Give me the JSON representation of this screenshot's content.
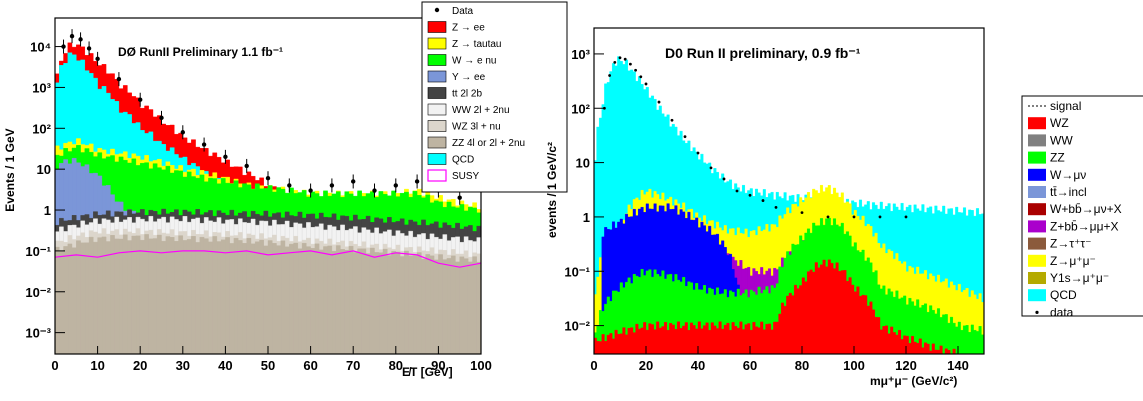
{
  "chart_data": [
    {
      "type": "area",
      "title": "DØ RunII Preliminary 1.1 fb⁻¹",
      "xlabel": "E̸T [GeV]",
      "ylabel": "Events / 1 GeV",
      "x_scale": "linear",
      "y_scale": "log",
      "xlim": [
        0,
        100
      ],
      "ylim": [
        0.0003,
        50000
      ],
      "x_ticks": [
        "0",
        "10",
        "20",
        "30",
        "40",
        "50",
        "60",
        "70",
        "80",
        "90",
        "100"
      ],
      "y_ticks": [
        "10⁻³",
        "10⁻²",
        "10⁻¹",
        "1",
        "10",
        "10²",
        "10³",
        "10⁴"
      ],
      "legend_position": "top-right",
      "series": [
        {
          "name": "QCD",
          "color": "#00ffff",
          "x": [
            0,
            2,
            4,
            6,
            8,
            10,
            15,
            20,
            25,
            30,
            35,
            40,
            45,
            50,
            55,
            60,
            65,
            70,
            75,
            80,
            85,
            90,
            95,
            100
          ],
          "values": [
            400,
            4000,
            7000,
            4500,
            2500,
            1200,
            300,
            100,
            40,
            18,
            8,
            4,
            2.5,
            1.6,
            1.2,
            1.0,
            0.9,
            0.8,
            0.7,
            0.6,
            0.5,
            0.4,
            0.35,
            0.3
          ]
        },
        {
          "name": "Z → ee",
          "color": "#ff0000",
          "x": [
            0,
            2,
            4,
            6,
            8,
            10,
            15,
            20,
            25,
            30,
            35,
            40,
            45,
            50,
            55,
            60,
            65,
            70,
            75,
            80,
            85,
            90,
            95,
            100
          ],
          "values": [
            500,
            6000,
            12000,
            10000,
            6500,
            4000,
            1200,
            400,
            150,
            60,
            30,
            15,
            8,
            4,
            2,
            1.2,
            0.9,
            0.7,
            0.6,
            0.5,
            0.5,
            0.4,
            0.35,
            0.3
          ]
        },
        {
          "name": "Z → tautau",
          "color": "#ffff00",
          "x": [
            0,
            5,
            10,
            15,
            20,
            25,
            30,
            35,
            40,
            45,
            50,
            55,
            60,
            65,
            70,
            75,
            80,
            85,
            90,
            95,
            100
          ],
          "values": [
            30,
            50,
            30,
            25,
            20,
            15,
            10,
            8,
            6,
            4,
            3.5,
            3,
            2.5,
            2.5,
            2.5,
            2.5,
            2.5,
            3,
            2,
            1.5,
            1.2
          ]
        },
        {
          "name": "W → e nu",
          "color": "#00ff00",
          "x": [
            0,
            5,
            10,
            15,
            20,
            25,
            30,
            35,
            40,
            45,
            50,
            55,
            60,
            65,
            70,
            75,
            80,
            85,
            90,
            95,
            100
          ],
          "values": [
            20,
            35,
            22,
            18,
            14,
            11,
            8,
            6,
            5,
            4,
            3.5,
            3,
            2.5,
            2.5,
            2.5,
            2.5,
            2.5,
            2.5,
            1.5,
            1.2,
            1.0
          ]
        },
        {
          "name": "Y → ee",
          "color": "#7b96d8",
          "x": [
            0,
            2,
            4,
            6,
            8,
            10,
            12,
            14,
            15,
            16,
            18,
            20
          ],
          "values": [
            10,
            15,
            17,
            14,
            10,
            7,
            4,
            2,
            1.5,
            1.2,
            0.9,
            0.8
          ]
        },
        {
          "name": "tt 2l 2b",
          "color": "#444444",
          "x": [
            0,
            10,
            20,
            30,
            40,
            50,
            60,
            70,
            80,
            90,
            100
          ],
          "values": [
            0.5,
            0.8,
            0.9,
            0.9,
            0.85,
            0.8,
            0.75,
            0.65,
            0.55,
            0.45,
            0.35
          ]
        },
        {
          "name": "WW 2l + 2nu",
          "color": "#f2f2f2",
          "x": [
            0,
            10,
            20,
            30,
            40,
            50,
            60,
            70,
            80,
            90,
            100
          ],
          "values": [
            0.3,
            0.55,
            0.6,
            0.6,
            0.55,
            0.5,
            0.42,
            0.35,
            0.28,
            0.22,
            0.18
          ]
        },
        {
          "name": "WZ 3l + nu",
          "color": "#dcd6cc",
          "x": [
            0,
            10,
            20,
            30,
            40,
            50,
            60,
            70,
            80,
            90,
            100
          ],
          "values": [
            0.15,
            0.3,
            0.3,
            0.28,
            0.26,
            0.22,
            0.18,
            0.15,
            0.12,
            0.1,
            0.08
          ]
        },
        {
          "name": "ZZ 4l or 2l + 2nu",
          "color": "#beb4a2",
          "x": [
            0,
            10,
            20,
            30,
            40,
            50,
            60,
            70,
            80,
            90,
            100
          ],
          "values": [
            0.1,
            0.2,
            0.22,
            0.2,
            0.19,
            0.16,
            0.13,
            0.11,
            0.09,
            0.07,
            0.06
          ]
        },
        {
          "name": "SUSY",
          "color": "#ff00ff",
          "x": [
            0,
            5,
            10,
            15,
            20,
            25,
            30,
            35,
            40,
            45,
            50,
            55,
            60,
            65,
            70,
            75,
            80,
            85,
            90,
            95,
            100
          ],
          "values": [
            0.07,
            0.08,
            0.07,
            0.09,
            0.1,
            0.09,
            0.1,
            0.1,
            0.09,
            0.1,
            0.08,
            0.09,
            0.1,
            0.08,
            0.1,
            0.07,
            0.09,
            0.08,
            0.05,
            0.04,
            0.05
          ]
        },
        {
          "name": "Data",
          "color": "#000000",
          "x": [
            2,
            4,
            6,
            8,
            10,
            15,
            20,
            25,
            30,
            35,
            40,
            45,
            50,
            55,
            60,
            65,
            70,
            75,
            80,
            85,
            90,
            95
          ],
          "values": [
            10000,
            18000,
            15000,
            9000,
            5000,
            1600,
            500,
            180,
            80,
            40,
            20,
            12,
            6,
            4,
            3,
            4,
            5,
            3,
            4,
            5,
            3,
            2
          ]
        }
      ]
    },
    {
      "type": "area",
      "title": "D0 Run II preliminary, 0.9 fb⁻¹",
      "xlabel": "mμ⁺μ⁻ (GeV/c²)",
      "ylabel": "events / 1 GeV/c²",
      "x_scale": "linear",
      "y_scale": "log",
      "xlim": [
        0,
        150
      ],
      "ylim": [
        0.003,
        3000
      ],
      "x_ticks": [
        "0",
        "20",
        "40",
        "60",
        "80",
        "100",
        "120",
        "140"
      ],
      "y_ticks": [
        "10⁻²",
        "10⁻¹",
        "1",
        "10",
        "10²",
        "10³"
      ],
      "legend_position": "right",
      "series": [
        {
          "name": "signal",
          "color": "#000000",
          "values": []
        },
        {
          "name": "WZ",
          "color": "#ff0000",
          "x": [
            0,
            20,
            40,
            60,
            70,
            80,
            85,
            90,
            95,
            100,
            110,
            120,
            130,
            140,
            150
          ],
          "values": [
            0.005,
            0.01,
            0.01,
            0.01,
            0.01,
            0.06,
            0.12,
            0.15,
            0.11,
            0.05,
            0.01,
            0.006,
            0.004,
            0.003,
            0.003
          ]
        },
        {
          "name": "WW",
          "color": "#808080",
          "values": []
        },
        {
          "name": "ZZ",
          "color": "#00ff00",
          "x": [
            0,
            10,
            20,
            30,
            40,
            50,
            60,
            70,
            80,
            85,
            90,
            95,
            100,
            110,
            120,
            130,
            140,
            150
          ],
          "values": [
            0.005,
            0.05,
            0.1,
            0.08,
            0.05,
            0.04,
            0.04,
            0.05,
            0.4,
            0.7,
            0.9,
            0.7,
            0.3,
            0.05,
            0.03,
            0.02,
            0.01,
            0.008
          ]
        },
        {
          "name": "W→μν",
          "color": "#0000ff",
          "x": [
            3,
            10,
            20,
            30,
            40,
            50,
            55
          ],
          "values": [
            0.5,
            0.8,
            1.5,
            1.5,
            0.8,
            0.3,
            0.05
          ]
        },
        {
          "name": "tt̄→incl",
          "color": "#7b96d8",
          "values": []
        },
        {
          "name": "W+bb̄→μν+X",
          "color": "#aa0000",
          "values": []
        },
        {
          "name": "Z+bb̄→μμ+X",
          "color": "#aa00cc",
          "x": [
            10,
            20,
            30,
            40,
            50,
            60,
            70,
            80,
            90,
            100
          ],
          "values": [
            0.2,
            0.4,
            0.4,
            0.3,
            0.2,
            0.1,
            0.1,
            0.3,
            0.6,
            0.2
          ]
        },
        {
          "name": "Z→τ⁺τ⁻",
          "color": "#8b5a3c",
          "values": []
        },
        {
          "name": "Z→μ⁺μ⁻",
          "color": "#ffff00",
          "x": [
            0,
            10,
            20,
            30,
            40,
            50,
            60,
            70,
            80,
            85,
            90,
            95,
            100,
            110,
            120,
            130,
            140,
            150
          ],
          "values": [
            0.005,
            0.6,
            3,
            2,
            1,
            0.6,
            0.5,
            0.7,
            2,
            3,
            3.5,
            2.5,
            1.2,
            0.3,
            0.12,
            0.08,
            0.05,
            0.03
          ]
        },
        {
          "name": "Υ1s→μ⁺μ⁻",
          "color": "#b4aa00",
          "values": []
        },
        {
          "name": "QCD",
          "color": "#00ffff",
          "x": [
            0,
            3,
            6,
            9,
            12,
            15,
            20,
            25,
            30,
            35,
            40,
            45,
            50,
            55,
            60,
            70,
            80,
            90,
            100,
            110,
            120,
            130,
            140,
            150
          ],
          "values": [
            0.005,
            80,
            400,
            800,
            700,
            450,
            220,
            100,
            50,
            25,
            14,
            8,
            5,
            3.5,
            3,
            2.5,
            2.2,
            2,
            1.8,
            1.6,
            1.5,
            1.4,
            1.3,
            1.2
          ]
        },
        {
          "name": "data",
          "color": "#000000",
          "x": [
            4,
            6,
            8,
            10,
            12,
            14,
            16,
            18,
            20,
            25,
            30,
            35,
            40,
            45,
            50,
            55,
            60,
            65,
            70,
            80,
            90,
            100,
            110,
            120
          ],
          "values": [
            100,
            400,
            700,
            850,
            800,
            650,
            500,
            380,
            280,
            130,
            60,
            30,
            15,
            8,
            5,
            3,
            2.5,
            2,
            1.5,
            1.2,
            1,
            1,
            1,
            1
          ]
        }
      ]
    }
  ]
}
